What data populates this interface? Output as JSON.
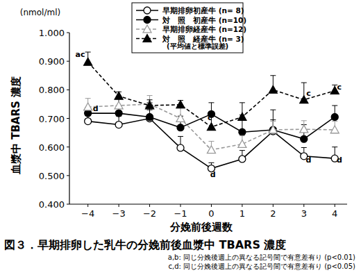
{
  "chart_data": {
    "type": "line",
    "title": "図３．早期排卵した乳牛の分娩前後血漿中 TBARS 濃度",
    "notes": [
      "a,b: 同じ分娩後週上の異なる記号間で有意差有り (p<0.01)",
      "c,d: 同じ分娩後週上の異なる記号間で有意差有り (p<0.05)"
    ],
    "x_label": "分娩前後週数",
    "y_label": "血漿中 TBARS 濃度",
    "y_unit": "(nmol/ml)",
    "legend": "top",
    "legend_note": "(平均値と標準誤差)",
    "xlim": [
      -4.6,
      4.4
    ],
    "xticks": [
      -4,
      -3,
      -2,
      -1,
      0,
      1,
      2,
      3,
      4
    ],
    "ylim": [
      0.4,
      1.0
    ],
    "yticks": [
      {
        "value": 0.4,
        "label": "0.400"
      },
      {
        "value": 0.5,
        "label": "0.500"
      },
      {
        "value": 0.6,
        "label": "0.600"
      },
      {
        "value": 0.7,
        "label": "0.700"
      },
      {
        "value": 0.8,
        "label": "0.800"
      },
      {
        "value": 0.9,
        "label": "0.900"
      },
      {
        "value": 1.0,
        "label": "1.000"
      }
    ],
    "grid": false,
    "x": [
      -4,
      -3,
      -2,
      -1,
      0,
      1,
      2,
      3,
      4
    ],
    "series": [
      {
        "name": "早期排卵初産牛 (n= 8)",
        "color": "#000000",
        "marker": "open-circle",
        "line_style": "solid",
        "values": [
          0.69,
          0.678,
          0.7,
          0.597,
          0.525,
          0.558,
          0.655,
          0.568,
          0.56
        ],
        "errors": [
          0.02,
          0.03,
          0.03,
          0.04,
          0.02,
          0.03,
          0.04,
          0.03,
          0.04
        ]
      },
      {
        "name": "対　照　初産牛 (n=10)",
        "color": "#000000",
        "marker": "filled-circle",
        "line_style": "solid",
        "values": [
          0.718,
          0.718,
          0.705,
          0.668,
          0.715,
          0.652,
          0.66,
          0.628,
          0.705
        ],
        "errors": [
          0.02,
          0.05,
          0.05,
          0.04,
          0.04,
          0.06,
          0.07,
          0.05,
          0.04
        ]
      },
      {
        "name": "早期排卵経産牛 (n=12)",
        "color": "#999999",
        "marker": "open-triangle",
        "line_style": "dashed",
        "values": [
          0.74,
          0.745,
          0.75,
          0.7,
          0.59,
          0.61,
          0.66,
          0.662,
          0.66
        ],
        "errors": [
          0.03,
          0.03,
          0.03,
          0.04,
          0.03,
          0.03,
          0.03,
          0.03,
          0.03
        ]
      },
      {
        "name": "対　照　経産牛 (n= 3)",
        "color": "#000000",
        "marker": "filled-triangle",
        "line_style": "dashed",
        "values": [
          0.897,
          0.778,
          0.745,
          0.748,
          0.67,
          0.705,
          0.8,
          0.765,
          0.797
        ],
        "errors": [
          0.035,
          0.015,
          0.02,
          0.015,
          0.05,
          0.05,
          0.05,
          0.06,
          0.02
        ]
      }
    ],
    "annotations": [
      {
        "text": "ac",
        "x": -4.25,
        "y": 0.915
      },
      {
        "text": "d",
        "x": -3.75,
        "y": 0.725
      },
      {
        "text": "c",
        "x": -0.05,
        "y": 0.695
      },
      {
        "text": "d",
        "x": 0.05,
        "y": 0.495
      },
      {
        "text": "c",
        "x": 3.15,
        "y": 0.78
      },
      {
        "text": "d",
        "x": 3.15,
        "y": 0.545
      },
      {
        "text": "c",
        "x": 4.15,
        "y": 0.8
      },
      {
        "text": "d",
        "x": 4.15,
        "y": 0.545
      }
    ]
  }
}
